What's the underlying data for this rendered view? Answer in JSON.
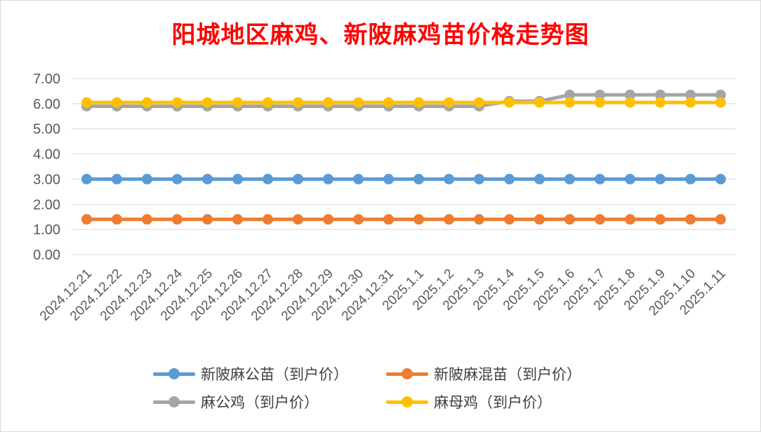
{
  "chart_data": {
    "type": "line",
    "title": "阳城地区麻鸡、新陂麻鸡苗价格走势图",
    "categories": [
      "2024.12.21",
      "2024.12.22",
      "2024.12.23",
      "2024.12.24",
      "2024.12.25",
      "2024.12.26",
      "2024.12.27",
      "2024.12.28",
      "2024.12.29",
      "2024.12.30",
      "2024.12.31",
      "2025.1.1",
      "2025.1.2",
      "2025.1.3",
      "2025.1.4",
      "2025.1.5",
      "2025.1.6",
      "2025.1.7",
      "2025.1.8",
      "2025.1.9",
      "2025.1.10",
      "2025.1.11"
    ],
    "y_ticks": [
      "0.00",
      "1.00",
      "2.00",
      "3.00",
      "4.00",
      "5.00",
      "6.00",
      "7.00"
    ],
    "ylim": [
      0,
      7
    ],
    "grid": true,
    "legend_position": "bottom",
    "series": [
      {
        "name": "新陂麻公苗（到户价）",
        "color": "#5b9bd5",
        "values": [
          3.0,
          3.0,
          3.0,
          3.0,
          3.0,
          3.0,
          3.0,
          3.0,
          3.0,
          3.0,
          3.0,
          3.0,
          3.0,
          3.0,
          3.0,
          3.0,
          3.0,
          3.0,
          3.0,
          3.0,
          3.0,
          3.0
        ]
      },
      {
        "name": "新陂麻混苗（到户价）",
        "color": "#ed7d31",
        "values": [
          1.4,
          1.4,
          1.4,
          1.4,
          1.4,
          1.4,
          1.4,
          1.4,
          1.4,
          1.4,
          1.4,
          1.4,
          1.4,
          1.4,
          1.4,
          1.4,
          1.4,
          1.4,
          1.4,
          1.4,
          1.4,
          1.4
        ]
      },
      {
        "name": "麻公鸡（到户价）",
        "color": "#a5a5a5",
        "values": [
          5.9,
          5.9,
          5.9,
          5.9,
          5.9,
          5.9,
          5.9,
          5.9,
          5.9,
          5.9,
          5.9,
          5.9,
          5.9,
          5.9,
          6.1,
          6.1,
          6.35,
          6.35,
          6.35,
          6.35,
          6.35,
          6.35
        ]
      },
      {
        "name": "麻母鸡（到户价）",
        "color": "#ffc000",
        "values": [
          6.05,
          6.05,
          6.05,
          6.05,
          6.05,
          6.05,
          6.05,
          6.05,
          6.05,
          6.05,
          6.05,
          6.05,
          6.05,
          6.05,
          6.05,
          6.05,
          6.05,
          6.05,
          6.05,
          6.05,
          6.05,
          6.05
        ]
      }
    ]
  }
}
